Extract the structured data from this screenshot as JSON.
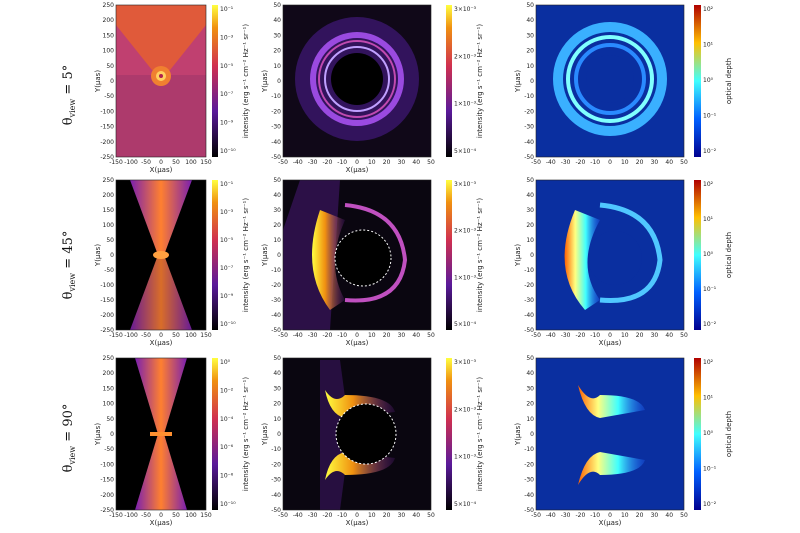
{
  "figure": {
    "rows": [
      {
        "label_main": "θ",
        "label_sub": "view",
        "label_tail": " = 5°",
        "left": {
          "xlabel": "X(μas)",
          "ylabel": "Y(μas)",
          "xticks": [
            "-150",
            "-100",
            "-50",
            "0",
            "50",
            "100",
            "150"
          ],
          "yticks": [
            "250",
            "200",
            "150",
            "100",
            "50",
            "0",
            "-50",
            "-100",
            "-150",
            "-200",
            "-250"
          ],
          "cb_ticks": [
            "10⁻¹",
            "10⁻³",
            "10⁻⁵",
            "10⁻⁷",
            "10⁻⁹",
            "10⁻¹⁰"
          ],
          "cb_label": "intensity (erg s⁻¹ cm⁻² Hz⁻¹ sr⁻¹)"
        },
        "mid": {
          "xlabel": "X(μas)",
          "ylabel": "Y(μas)",
          "xticks": [
            "-50",
            "-40",
            "-30",
            "-20",
            "-10",
            "0",
            "10",
            "20",
            "30",
            "40",
            "50"
          ],
          "yticks": [
            "50",
            "40",
            "30",
            "20",
            "10",
            "0",
            "-10",
            "-20",
            "-30",
            "-40",
            "-50"
          ],
          "cb_ticks": [
            "3×10⁻³",
            "2×10⁻³",
            "1×10⁻³",
            "5×10⁻⁴"
          ],
          "cb_label": "intensity (erg s⁻¹ cm⁻² Hz⁻¹ sr⁻¹)"
        },
        "right": {
          "xlabel": "",
          "ylabel": "Y(μas)",
          "xticks": [
            "-50",
            "-40",
            "-30",
            "-20",
            "-10",
            "0",
            "10",
            "20",
            "30",
            "40",
            "50"
          ],
          "yticks": [
            "50",
            "40",
            "30",
            "20",
            "10",
            "0",
            "-10",
            "-20",
            "-30",
            "-40",
            "-50"
          ],
          "cb_ticks": [
            "10²",
            "10¹",
            "10⁰",
            "10⁻¹",
            "10⁻²"
          ],
          "cb_label": "optical depth"
        }
      },
      {
        "label_main": "θ",
        "label_sub": "view",
        "label_tail": " = 45°",
        "left": {
          "xlabel": "X(μas)",
          "ylabel": "Y(μas)",
          "xticks": [
            "-150",
            "-100",
            "-50",
            "0",
            "50",
            "100",
            "150"
          ],
          "yticks": [
            "250",
            "200",
            "150",
            "100",
            "50",
            "0",
            "-50",
            "-100",
            "-150",
            "-200",
            "-250"
          ],
          "cb_ticks": [
            "10⁻¹",
            "10⁻³",
            "10⁻⁵",
            "10⁻⁷",
            "10⁻⁹",
            "10⁻¹⁰"
          ],
          "cb_label": "intensity (erg s⁻¹ cm⁻² Hz⁻¹ sr⁻¹)"
        },
        "mid": {
          "xlabel": "X(μas)",
          "ylabel": "Y(μas)",
          "xticks": [
            "-50",
            "-40",
            "-30",
            "-20",
            "-10",
            "0",
            "10",
            "20",
            "30",
            "40",
            "50"
          ],
          "yticks": [
            "50",
            "40",
            "30",
            "20",
            "10",
            "0",
            "-10",
            "-20",
            "-30",
            "-40",
            "-50"
          ],
          "cb_ticks": [
            "3×10⁻³",
            "2×10⁻³",
            "1×10⁻³",
            "5×10⁻⁴"
          ],
          "cb_label": "intensity (erg s⁻¹ cm⁻² Hz⁻¹ sr⁻¹)"
        },
        "right": {
          "xlabel": "X(μas)",
          "ylabel": "Y(μas)",
          "xticks": [
            "-50",
            "-40",
            "-30",
            "-20",
            "-10",
            "0",
            "10",
            "20",
            "30",
            "40",
            "50"
          ],
          "yticks": [
            "50",
            "40",
            "30",
            "20",
            "10",
            "0",
            "-10",
            "-20",
            "-30",
            "-40",
            "-50"
          ],
          "cb_ticks": [
            "10²",
            "10¹",
            "10⁰",
            "10⁻¹",
            "10⁻²"
          ],
          "cb_label": "optical depth"
        }
      },
      {
        "label_main": "θ",
        "label_sub": "view",
        "label_tail": " = 90°",
        "left": {
          "xlabel": "X(μas)",
          "ylabel": "Y(μas)",
          "xticks": [
            "-150",
            "-100",
            "-50",
            "0",
            "50",
            "100",
            "150"
          ],
          "yticks": [
            "250",
            "200",
            "150",
            "100",
            "50",
            "0",
            "-50",
            "-100",
            "-150",
            "-200",
            "-250"
          ],
          "cb_ticks": [
            "10⁰",
            "10⁻²",
            "10⁻⁴",
            "10⁻⁶",
            "10⁻⁸",
            "10⁻¹⁰"
          ],
          "cb_label": "intensity (erg s⁻¹ cm⁻² Hz⁻¹ sr⁻¹)"
        },
        "mid": {
          "xlabel": "X(μas)",
          "ylabel": "Y(μas)",
          "xticks": [
            "-50",
            "-40",
            "-30",
            "-20",
            "-10",
            "0",
            "10",
            "20",
            "30",
            "40",
            "50"
          ],
          "yticks": [
            "50",
            "40",
            "30",
            "20",
            "10",
            "0",
            "-10",
            "-20",
            "-30",
            "-40",
            "-50"
          ],
          "cb_ticks": [
            "3×10⁻³",
            "2×10⁻³",
            "1×10⁻³",
            "5×10⁻⁴"
          ],
          "cb_label": "intensity (erg s⁻¹ cm⁻² Hz⁻¹ sr⁻¹)"
        },
        "right": {
          "xlabel": "X(μas)",
          "ylabel": "Y(μas)",
          "xticks": [
            "-50",
            "-40",
            "-30",
            "-20",
            "-10",
            "0",
            "10",
            "20",
            "30",
            "40",
            "50"
          ],
          "yticks": [
            "50",
            "40",
            "30",
            "20",
            "10",
            "0",
            "-10",
            "-20",
            "-30",
            "-40",
            "-50"
          ],
          "cb_ticks": [
            "10²",
            "10¹",
            "10⁰",
            "10⁻¹",
            "10⁻²"
          ],
          "cb_label": "optical depth"
        }
      }
    ]
  }
}
